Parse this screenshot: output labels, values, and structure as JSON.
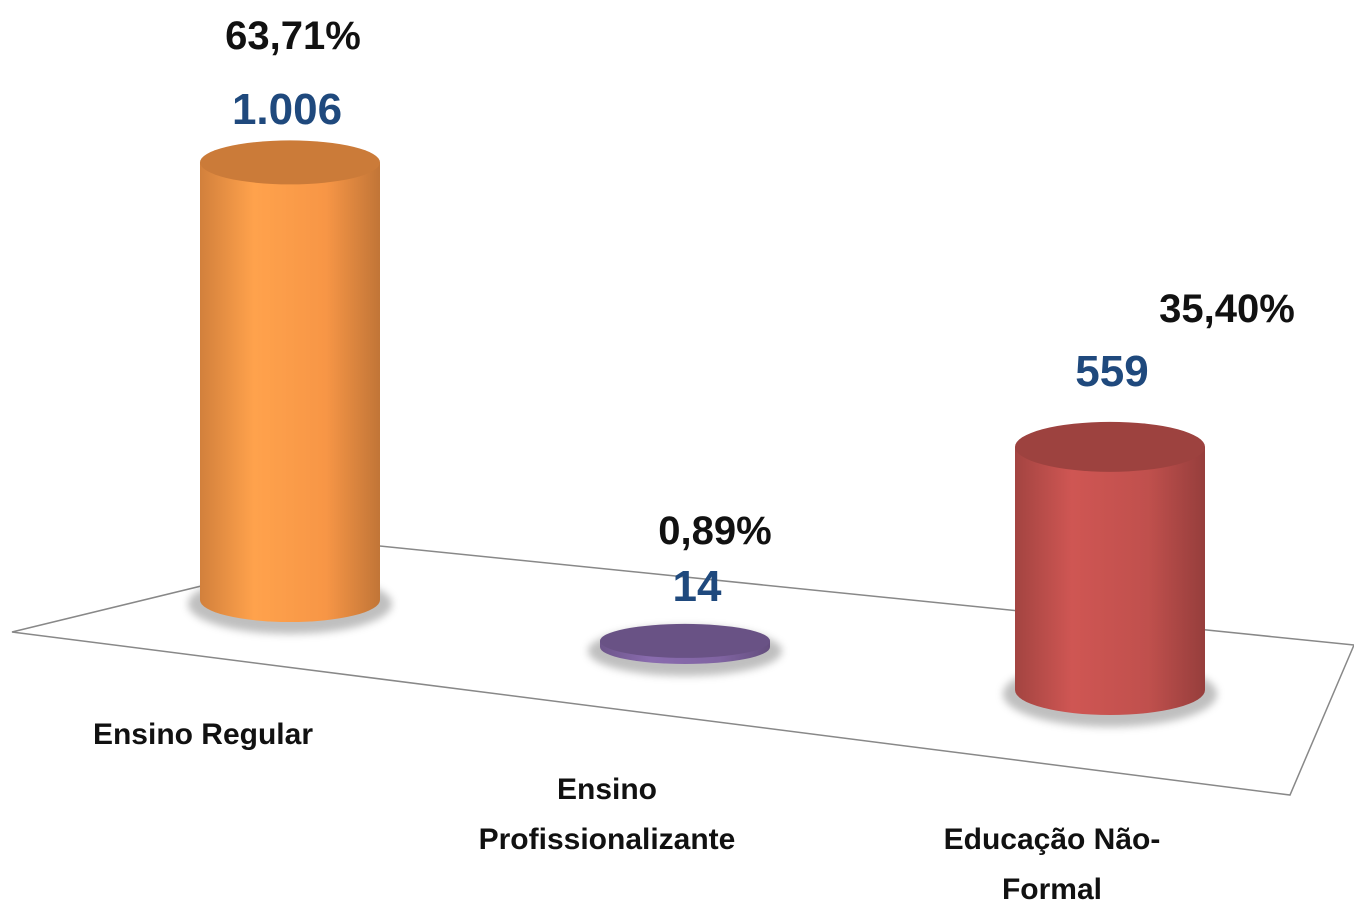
{
  "chart_data": {
    "type": "bar3d",
    "categories": [
      "Ensino Regular",
      "Ensino Profissionalizante",
      "Educação Não-Formal"
    ],
    "values": [
      1006,
      14,
      559
    ],
    "value_labels": [
      "1.006",
      "14",
      "559"
    ],
    "shares": [
      63.71,
      0.89,
      35.4
    ],
    "share_labels": [
      "63,71%",
      "0,89%",
      "35,40%"
    ],
    "colors": [
      "#f79646",
      "#8064a2",
      "#c0504d"
    ]
  }
}
